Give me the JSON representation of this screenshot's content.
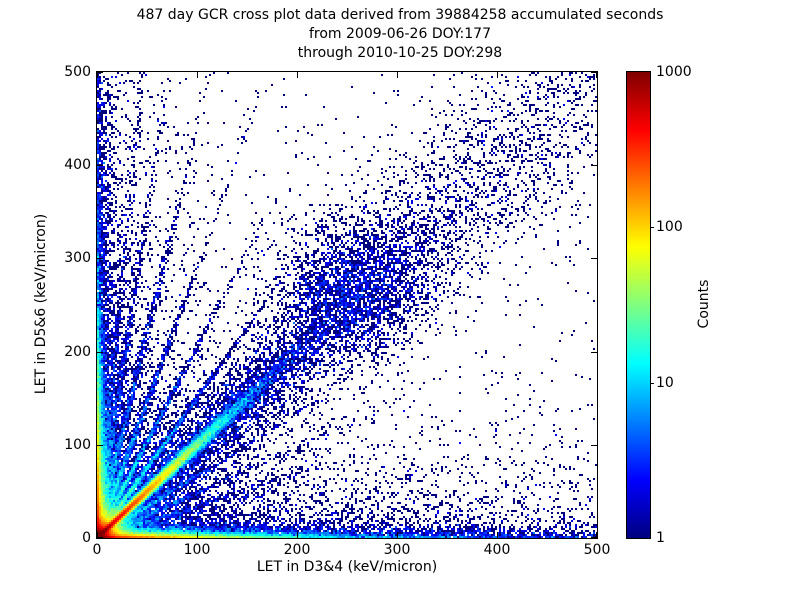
{
  "chart_data": {
    "type": "heatmap",
    "title": "487 day GCR cross plot data derived from 39884258 accumulated seconds",
    "subtitle_line1": "from 2009-06-26 DOY:177",
    "subtitle_line2": "through 2010-10-25 DOY:298",
    "xlabel": "LET in D3&4 (keV/micron)",
    "ylabel": "LET in D5&6 (keV/micron)",
    "xlim": [
      0,
      500
    ],
    "ylim": [
      0,
      500
    ],
    "xticks": [
      0,
      100,
      200,
      300,
      400,
      500
    ],
    "yticks": [
      0,
      100,
      200,
      300,
      400,
      500
    ],
    "grid": false,
    "days": 487,
    "accumulated_seconds": 39884258,
    "start_date": "2009-06-26",
    "start_doy": 177,
    "end_date": "2010-10-25",
    "end_doy": 298,
    "colorbar": {
      "label": "Counts",
      "scale": "log",
      "min": 1,
      "max": 1000,
      "ticks": [
        1,
        10,
        100,
        1000
      ],
      "marked_ticks": [
        10,
        100
      ],
      "colormap": "jet",
      "position": "right"
    },
    "colormap_stops": [
      {
        "t": 0.0,
        "c": "#00007f"
      },
      {
        "t": 0.125,
        "c": "#0000ff"
      },
      {
        "t": 0.375,
        "c": "#00ffff"
      },
      {
        "t": 0.625,
        "c": "#ffff00"
      },
      {
        "t": 0.875,
        "c": "#ff0000"
      },
      {
        "t": 1.0,
        "c": "#7f0000"
      }
    ],
    "features": [
      "intense hot spot at the origin reaching ~1000 counts (dark red)",
      "sharp 45-degree ridge y=x from the origin: red to ~50, yellow/green to ~100, cyan to ~150 keV/micron",
      "broad diffuse blue band along y=x extending to ~430 keV/micron with a denser clump near (255,268)",
      "fan of faint ion tracks radiating from the origin at slopes ~1.5, 2, 3, 4.4, 7, 11 (and mirrored shallow tracks)",
      "dense band along the x-axis: red near origin fading through yellow/green/cyan to dark blue at 500",
      "dense band along the y-axis: red near origin fading through yellow/green/cyan to dark blue at 500",
      "sparse isolated single-count (dark navy) pixels scattered over the full plane"
    ],
    "density_model": {
      "seed": 1234567,
      "bins": [
        250,
        233
      ],
      "background": {
        "amp": 0.045,
        "scale": 260,
        "floor": 0.006
      },
      "origin_peak": {
        "amp": 1600,
        "scale": 7,
        "power": 1.15
      },
      "origin_halo": {
        "amp": 2.2,
        "scale": 55
      },
      "sharp_diagonal": {
        "amp": 900,
        "width0": 1.3,
        "width_growth": 0.0208,
        "length": 29
      },
      "broad_diagonal": {
        "amp": 3.0,
        "width0": 6,
        "width_growth": 0.085,
        "length": 170
      },
      "band_blob": {
        "amp": 1.1,
        "x": 255,
        "y": 268,
        "sigma": 38
      },
      "bottom_band": [
        [
          550,
          2.3,
          55
        ],
        [
          22,
          5,
          150
        ]
      ],
      "bottom_strip": {
        "amp": 3.2,
        "yscale": 6,
        "base": 0.28,
        "xscale": 130
      },
      "bottom_edge": {
        "amp": 4.0,
        "yscale": 1.2,
        "base": 0.3,
        "xscale": 200
      },
      "bottom_halo": {
        "amp": 1.3,
        "yscale": 40,
        "xscale": 300
      },
      "left_band": [
        [
          550,
          2.3,
          55
        ],
        [
          22,
          5,
          150
        ]
      ],
      "left_strip": {
        "amp": 2.8,
        "xscale": 5.5,
        "base": 0.22,
        "yscale": 130
      },
      "left_halo": {
        "amp": 1.1,
        "xscale": 32,
        "yscale": 300
      },
      "rays_above": [
        [
          1.5,
          45,
          1.5,
          65
        ],
        [
          2.05,
          32,
          1.5,
          72
        ],
        [
          2.9,
          22,
          1.7,
          85
        ],
        [
          4.4,
          14,
          1.9,
          105
        ],
        [
          7,
          8,
          2.1,
          125
        ],
        [
          11,
          4.5,
          2.4,
          145
        ]
      ],
      "rays_below": [
        [
          1.5,
          16,
          1.5,
          60
        ],
        [
          2.05,
          11,
          1.5,
          62
        ],
        [
          2.9,
          8,
          1.6,
          64
        ]
      ]
    }
  }
}
